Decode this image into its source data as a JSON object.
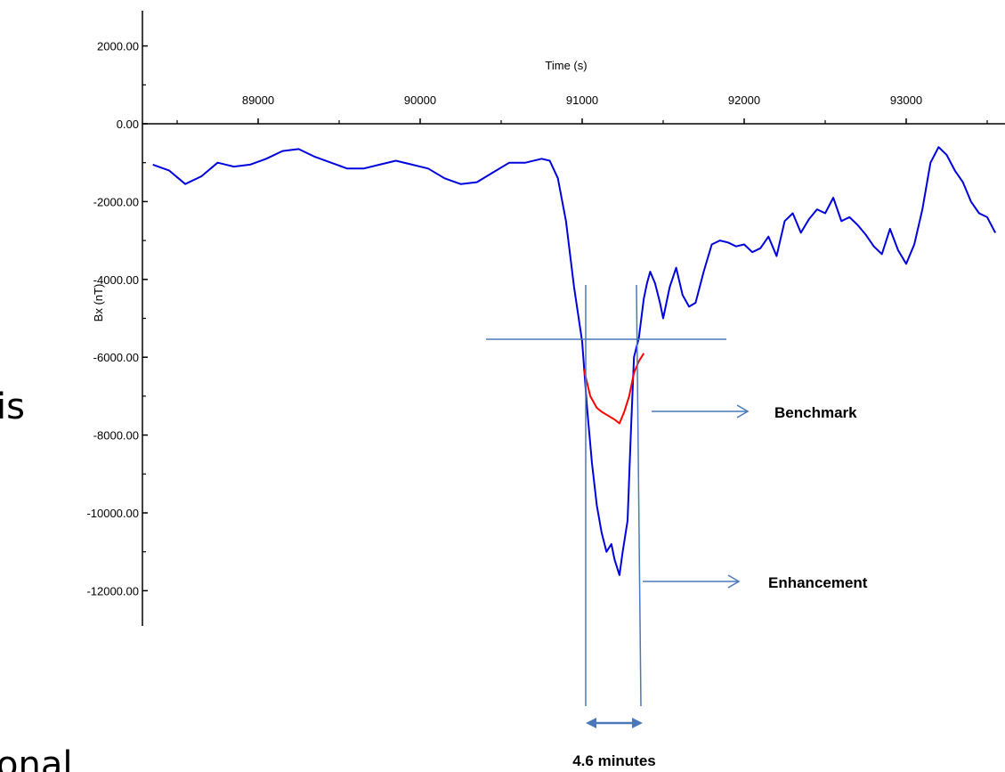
{
  "chart_data": {
    "type": "line",
    "title": "",
    "xlabel": "Time (s)",
    "ylabel": "Bx (nT)",
    "xlim": [
      88350,
      93550
    ],
    "ylim": [
      -13000,
      2500
    ],
    "x_ticks": [
      89000,
      90000,
      91000,
      92000,
      93000
    ],
    "y_ticks": [
      2000,
      0,
      -2000,
      -4000,
      -6000,
      -8000,
      -10000,
      -12000
    ],
    "y_tick_labels": [
      "2000.00",
      "0.00",
      "-2000.00",
      "-4000.00",
      "-6000.00",
      "-8000.00",
      "-10000.00",
      "-12000.00"
    ],
    "grid": false,
    "series": [
      {
        "color": "#0000dd",
        "x": [
          88350,
          88450,
          88550,
          88650,
          88750,
          88850,
          88950,
          89050,
          89150,
          89250,
          89350,
          89450,
          89550,
          89650,
          89750,
          89850,
          89950,
          90050,
          90150,
          90250,
          90350,
          90450,
          90550,
          90650,
          90750,
          90800,
          90850,
          90900,
          90950,
          91000,
          91030,
          91060,
          91090,
          91120,
          91150,
          91180,
          91200,
          91230,
          91250,
          91280,
          91300,
          91320,
          91350,
          91380,
          91400,
          91420,
          91450,
          91480,
          91500,
          91540,
          91580,
          91620,
          91660,
          91700,
          91750,
          91800,
          91850,
          91900,
          91950,
          92000,
          92050,
          92100,
          92150,
          92200,
          92250,
          92300,
          92350,
          92400,
          92450,
          92500,
          92550,
          92600,
          92650,
          92700,
          92750,
          92800,
          92850,
          92900,
          92950,
          93000,
          93050,
          93100,
          93150,
          93200,
          93250,
          93300,
          93350,
          93400,
          93450,
          93500,
          93550
        ],
        "y": [
          -1050,
          -1200,
          -1550,
          -1350,
          -1000,
          -1100,
          -1050,
          -900,
          -700,
          -650,
          -850,
          -1000,
          -1150,
          -1150,
          -1050,
          -950,
          -1050,
          -1150,
          -1400,
          -1550,
          -1500,
          -1250,
          -1000,
          -1000,
          -900,
          -950,
          -1400,
          -2500,
          -4200,
          -5600,
          -7300,
          -8700,
          -9800,
          -10500,
          -11000,
          -10800,
          -11200,
          -11600,
          -11000,
          -10200,
          -8000,
          -6000,
          -5500,
          -4500,
          -4100,
          -3800,
          -4100,
          -4600,
          -5000,
          -4200,
          -3700,
          -4400,
          -4700,
          -4600,
          -3800,
          -3100,
          -3000,
          -3050,
          -3150,
          -3100,
          -3300,
          -3200,
          -2900,
          -3400,
          -2500,
          -2300,
          -2800,
          -2450,
          -2200,
          -2300,
          -1900,
          -2500,
          -2400,
          -2600,
          -2850,
          -3150,
          -3350,
          -2700,
          -3250,
          -3600,
          -3100,
          -2200,
          -1000,
          -600,
          -800,
          -1200,
          -1500,
          -2000,
          -2300,
          -2400,
          -2800
        ]
      },
      {
        "color": "#ff0000",
        "x": [
          91010,
          91050,
          91090,
          91120,
          91160,
          91200,
          91230,
          91260,
          91290,
          91320,
          91350,
          91380
        ],
        "y": [
          -6300,
          -7000,
          -7300,
          -7400,
          -7500,
          -7600,
          -7700,
          -7400,
          -7000,
          -6400,
          -6100,
          -5900
        ]
      }
    ],
    "annotations": {
      "benchmark": "Benchmark",
      "enhancement": "Enhancement",
      "duration": "4.6 minutes"
    }
  },
  "background_fragments": {
    "left_mid": "is",
    "left_bottom": "onal"
  }
}
